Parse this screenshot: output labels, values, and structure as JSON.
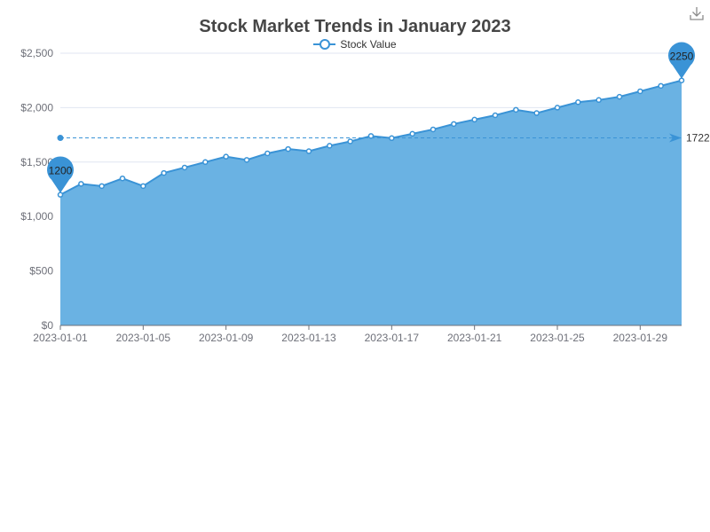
{
  "chart_data": {
    "type": "area",
    "title": "Stock Market Trends in January 2023",
    "legend": {
      "position": "top-center",
      "entries": [
        "Stock Value"
      ]
    },
    "series": [
      {
        "name": "Stock Value",
        "color": "#3a93d6",
        "fill_color": "#6ab2e3",
        "x": [
          "2023-01-01",
          "2023-01-02",
          "2023-01-03",
          "2023-01-04",
          "2023-01-05",
          "2023-01-06",
          "2023-01-07",
          "2023-01-08",
          "2023-01-09",
          "2023-01-10",
          "2023-01-11",
          "2023-01-12",
          "2023-01-13",
          "2023-01-14",
          "2023-01-15",
          "2023-01-16",
          "2023-01-17",
          "2023-01-18",
          "2023-01-19",
          "2023-01-20",
          "2023-01-21",
          "2023-01-22",
          "2023-01-23",
          "2023-01-24",
          "2023-01-25",
          "2023-01-26",
          "2023-01-27",
          "2023-01-28",
          "2023-01-29",
          "2023-01-30",
          "2023-01-31"
        ],
        "values": [
          1200,
          1300,
          1280,
          1350,
          1280,
          1400,
          1450,
          1500,
          1550,
          1520,
          1580,
          1620,
          1600,
          1650,
          1690,
          1740,
          1720,
          1760,
          1800,
          1850,
          1890,
          1930,
          1980,
          1950,
          2000,
          2050,
          2070,
          2100,
          2150,
          2200,
          2250
        ]
      }
    ],
    "x_tick_labels": [
      "2023-01-01",
      "2023-01-05",
      "2023-01-09",
      "2023-01-13",
      "2023-01-17",
      "2023-01-21",
      "2023-01-25",
      "2023-01-29"
    ],
    "y_tick_labels": [
      "$0",
      "$500",
      "$1,000",
      "$1,500",
      "$2,000",
      "$2,500"
    ],
    "ylim": [
      0,
      2500
    ],
    "grid": true,
    "markers": {
      "min": "1200",
      "max": "2250"
    },
    "average_line": {
      "value": 1722,
      "label": "1722"
    }
  },
  "toolbar": {
    "download_icon": "download-icon"
  }
}
